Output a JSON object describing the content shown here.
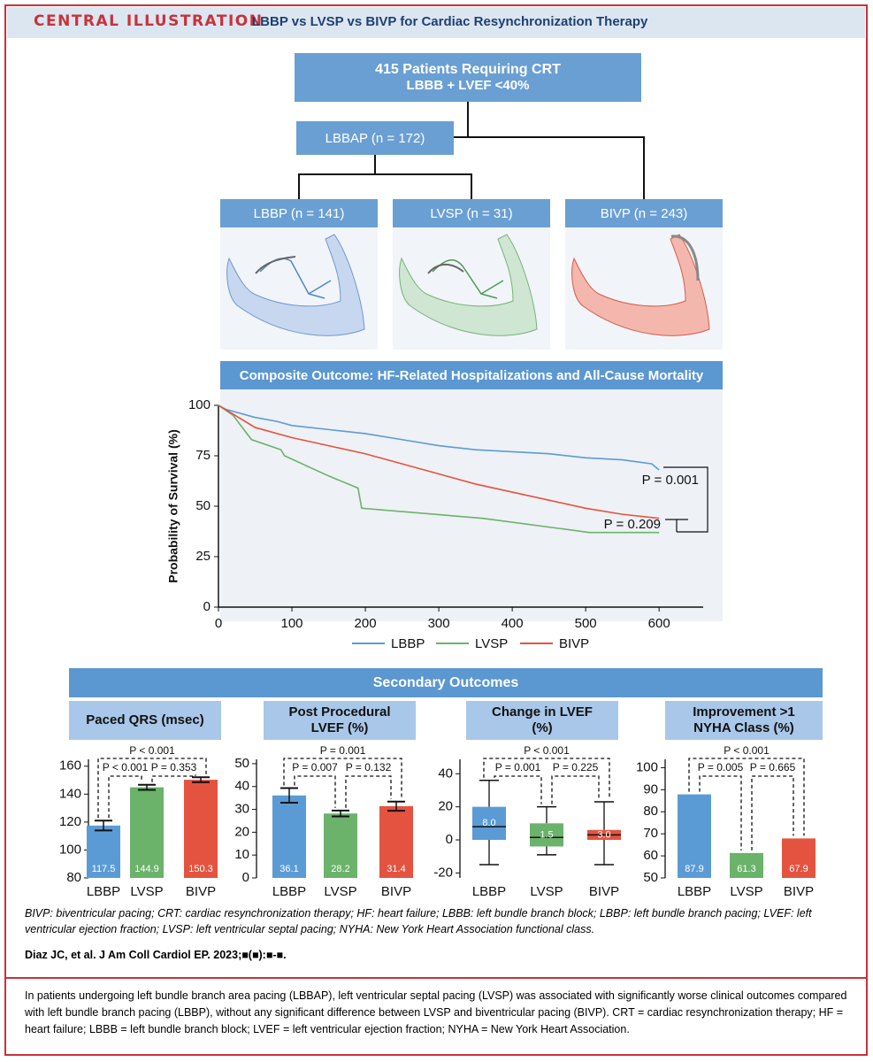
{
  "header": {
    "label": "CENTRAL ILLUSTRATION",
    "title": "LBBP vs LVSP vs BIVP for Cardiac Resynchronization Therapy"
  },
  "flowchart": {
    "nodes": [
      {
        "label": "415 Patients Requiring CRT",
        "sublabel": "LBBB + LVEF <40%"
      },
      {
        "label": "LBBAP (n = 172)"
      },
      {
        "label": "LBBP (n = 141)"
      },
      {
        "label": "LVSP (n = 31)"
      },
      {
        "label": "BIVP (n = 243)"
      }
    ]
  },
  "secondary_title": "Secondary Outcomes",
  "chart_data": [
    {
      "type": "line",
      "title": "Composite Outcome: HF-Related Hospitalizations and All-Cause Mortality",
      "ylabel": "Probability of Survival (%)",
      "xlim": [
        0,
        660
      ],
      "ylim": [
        0,
        100
      ],
      "xticks": [
        0,
        100,
        200,
        300,
        400,
        500,
        600
      ],
      "yticks": [
        0,
        25,
        50,
        75,
        100
      ],
      "series": [
        {
          "name": "LBBP",
          "color": "#5b9bd5",
          "x": [
            0,
            10,
            30,
            50,
            80,
            100,
            150,
            200,
            250,
            300,
            350,
            400,
            450,
            500,
            550,
            590,
            600
          ],
          "values": [
            100,
            98,
            96,
            94,
            92,
            90,
            88,
            86,
            83,
            80,
            78,
            77,
            76,
            74,
            73,
            71,
            68
          ]
        },
        {
          "name": "LVSP",
          "color": "#6bb26b",
          "x": [
            0,
            20,
            45,
            85,
            90,
            150,
            190,
            195,
            360,
            505,
            600
          ],
          "values": [
            100,
            95,
            83,
            78,
            75,
            65,
            59,
            49,
            44,
            37,
            37
          ]
        },
        {
          "name": "BIVP",
          "color": "#e4533f",
          "x": [
            0,
            50,
            100,
            150,
            200,
            250,
            300,
            350,
            400,
            450,
            500,
            550,
            600
          ],
          "values": [
            100,
            89,
            84,
            80,
            76,
            71,
            66,
            61,
            57,
            53,
            49,
            46,
            44
          ]
        }
      ],
      "annotations": [
        "P = 0.001",
        "P = 0.209"
      ]
    },
    {
      "type": "bar",
      "title": "Paced QRS (msec)",
      "categories": [
        "LBBP",
        "LVSP",
        "BIVP"
      ],
      "colors": [
        "#5b9bd5",
        "#6bb26b",
        "#e4533f"
      ],
      "values": [
        117.5,
        144.9,
        150.3
      ],
      "errors": [
        3.5,
        1.8,
        1.8
      ],
      "ylim": [
        80,
        170
      ],
      "yticks": [
        80,
        100,
        120,
        140,
        160
      ],
      "annotations": [
        "P < 0.001",
        "P < 0.001",
        "P = 0.353"
      ]
    },
    {
      "type": "bar",
      "title": "Post Procedural LVEF (%)",
      "categories": [
        "LBBP",
        "LVSP",
        "BIVP"
      ],
      "colors": [
        "#5b9bd5",
        "#6bb26b",
        "#e4533f"
      ],
      "values": [
        36.1,
        28.2,
        31.4
      ],
      "errors": [
        3.2,
        1.3,
        2
      ],
      "ylim": [
        0,
        55
      ],
      "yticks": [
        0,
        10,
        20,
        30,
        40,
        50
      ],
      "annotations": [
        "P = 0.001",
        "P = 0.007",
        "P = 0.132"
      ]
    },
    {
      "type": "box",
      "title": "Change in LVEF (%)",
      "categories": [
        "LBBP",
        "LVSP",
        "BIVP"
      ],
      "colors": [
        "#5b9bd5",
        "#6bb26b",
        "#e4533f"
      ],
      "values": [
        8,
        1.5,
        3
      ],
      "value_labels": [
        "8.0",
        "1.5",
        "3.0"
      ],
      "q1": [
        0,
        -4,
        0
      ],
      "q3": [
        20,
        10,
        6
      ],
      "whisker_low": [
        -15,
        -9,
        -15
      ],
      "whisker_high": [
        36,
        20,
        23
      ],
      "ylim": [
        -23,
        53
      ],
      "yticks": [
        -20,
        0,
        20,
        40
      ],
      "annotations": [
        "P < 0.001",
        "P = 0.001",
        "P = 0.225"
      ]
    },
    {
      "type": "bar",
      "title": "Improvement >1 NYHA Class (%)",
      "categories": [
        "LBBP",
        "LVSP",
        "BIVP"
      ],
      "colors": [
        "#5b9bd5",
        "#6bb26b",
        "#e4533f"
      ],
      "values": [
        87.9,
        61.3,
        67.9
      ],
      "ylim": [
        50,
        107
      ],
      "yticks": [
        50,
        60,
        70,
        80,
        90,
        100
      ],
      "annotations": [
        "P < 0.001",
        "P = 0.005",
        "P = 0.665"
      ]
    }
  ],
  "footnote": "BIVP: biventricular pacing; CRT: cardiac resynchronization therapy; HF: heart failure; LBBB: left bundle branch block; LBBP: left bundle branch pacing; LVEF: left ventricular ejection fraction; LVSP: left ventricular septal pacing; NYHA: New York Heart Association functional class.",
  "citation": "Diaz JC, et al. J Am Coll Cardiol EP. 2023;■(■):■-■.",
  "caption": "In patients undergoing left bundle branch area pacing (LBBAP), left ventricular septal pacing (LVSP) was associated with significantly worse clinical outcomes compared with left bundle branch pacing (LBBP), without any significant difference between LVSP and biventricular pacing (BIVP). CRT = cardiac resynchronization therapy; HF = heart failure; LBBB = left bundle branch block; LVEF = left ventricular ejection fraction; NYHA = New York Heart Association."
}
